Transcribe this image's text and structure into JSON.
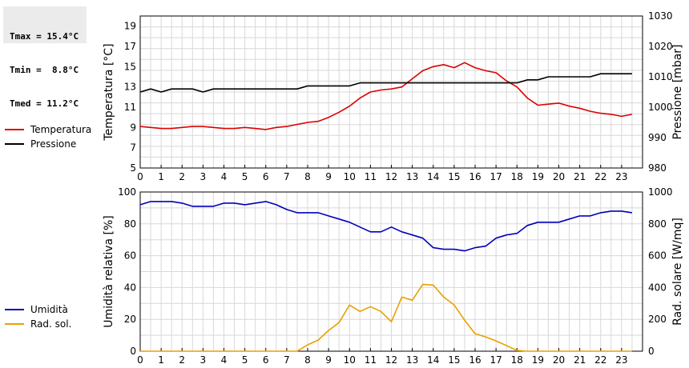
{
  "stats": {
    "tmax": "Tmax = 15.4°C",
    "tmin": "Tmin =  8.8°C",
    "tmed": "Tmed = 11.2°C"
  },
  "chart_data": [
    {
      "type": "line",
      "ylabel": "Temperatura [°C]",
      "y2label": "Pressione [mbar]",
      "ylim": [
        5,
        20
      ],
      "yticks": [
        5,
        7,
        9,
        11,
        13,
        15,
        17,
        19
      ],
      "y2lim": [
        980,
        1030
      ],
      "y2ticks": [
        980,
        990,
        1000,
        1010,
        1020,
        1030
      ],
      "xlim": [
        0,
        24
      ],
      "xticks": [
        0,
        1,
        2,
        3,
        4,
        5,
        6,
        7,
        8,
        9,
        10,
        11,
        12,
        13,
        14,
        15,
        16,
        17,
        18,
        19,
        20,
        21,
        22,
        23
      ],
      "grid": true,
      "legend_placement": "left",
      "series": [
        {
          "name": "Temperatura",
          "axis": "left",
          "color": "#dd0000",
          "x": [
            0,
            0.5,
            1,
            1.5,
            2,
            2.5,
            3,
            3.5,
            4,
            4.5,
            5,
            5.5,
            6,
            6.5,
            7,
            7.5,
            8,
            8.5,
            9,
            9.5,
            10,
            10.5,
            11,
            11.5,
            12,
            12.5,
            13,
            13.5,
            14,
            14.5,
            15,
            15.5,
            16,
            16.5,
            17,
            17.5,
            18,
            18.5,
            19,
            19.5,
            20,
            20.5,
            21,
            21.5,
            22,
            22.5,
            23,
            23.5
          ],
          "y": [
            9.1,
            9.0,
            8.9,
            8.9,
            9.0,
            9.1,
            9.1,
            9.0,
            8.9,
            8.9,
            9.0,
            8.9,
            8.8,
            9.0,
            9.1,
            9.3,
            9.5,
            9.6,
            10.0,
            10.5,
            11.1,
            11.9,
            12.5,
            12.7,
            12.8,
            13.0,
            13.8,
            14.6,
            15.0,
            15.2,
            14.9,
            15.4,
            14.9,
            14.6,
            14.4,
            13.6,
            13.0,
            11.9,
            11.2,
            11.3,
            11.4,
            11.1,
            10.9,
            10.6,
            10.4,
            10.3,
            10.1,
            10.3
          ]
        },
        {
          "name": "Pressione",
          "axis": "right",
          "color": "#000000",
          "x": [
            0,
            0.5,
            1,
            1.5,
            2,
            2.5,
            3,
            3.5,
            4,
            4.5,
            5,
            5.5,
            6,
            6.5,
            7,
            7.5,
            8,
            8.5,
            9,
            9.5,
            10,
            10.5,
            11,
            11.5,
            12,
            12.5,
            13,
            13.5,
            14,
            14.5,
            15,
            15.5,
            16,
            16.5,
            17,
            17.5,
            18,
            18.5,
            19,
            19.5,
            20,
            20.5,
            21,
            21.5,
            22,
            22.5,
            23,
            23.5
          ],
          "y": [
            1005,
            1006,
            1005,
            1006,
            1006,
            1006,
            1005,
            1006,
            1006,
            1006,
            1006,
            1006,
            1006,
            1006,
            1006,
            1006,
            1007,
            1007,
            1007,
            1007,
            1007,
            1008,
            1008,
            1008,
            1008,
            1008,
            1008,
            1008,
            1008,
            1008,
            1008,
            1008,
            1008,
            1008,
            1008,
            1008,
            1008,
            1009,
            1009,
            1010,
            1010,
            1010,
            1010,
            1010,
            1011,
            1011,
            1011,
            1011
          ]
        }
      ]
    },
    {
      "type": "line",
      "ylabel": "Umidità relativa [%]",
      "y2label": "Rad. solare [W/mq]",
      "ylim": [
        0,
        100
      ],
      "yticks": [
        0,
        20,
        40,
        60,
        80,
        100
      ],
      "y2lim": [
        0,
        1000
      ],
      "y2ticks": [
        0,
        200,
        400,
        600,
        800,
        1000
      ],
      "xlim": [
        0,
        24
      ],
      "xticks": [
        0,
        1,
        2,
        3,
        4,
        5,
        6,
        7,
        8,
        9,
        10,
        11,
        12,
        13,
        14,
        15,
        16,
        17,
        18,
        19,
        20,
        21,
        22,
        23
      ],
      "grid": true,
      "legend_placement": "left",
      "series": [
        {
          "name": "Umidità",
          "axis": "left",
          "color": "#0000bb",
          "x": [
            0,
            0.5,
            1,
            1.5,
            2,
            2.5,
            3,
            3.5,
            4,
            4.5,
            5,
            5.5,
            6,
            6.5,
            7,
            7.5,
            8,
            8.5,
            9,
            9.5,
            10,
            10.5,
            11,
            11.5,
            12,
            12.5,
            13,
            13.5,
            14,
            14.5,
            15,
            15.5,
            16,
            16.5,
            17,
            17.5,
            18,
            18.5,
            19,
            19.5,
            20,
            20.5,
            21,
            21.5,
            22,
            22.5,
            23,
            23.5
          ],
          "y": [
            92,
            94,
            94,
            94,
            93,
            91,
            91,
            91,
            93,
            93,
            92,
            93,
            94,
            92,
            89,
            87,
            87,
            87,
            85,
            83,
            81,
            78,
            75,
            75,
            78,
            75,
            73,
            71,
            65,
            64,
            64,
            63,
            65,
            66,
            71,
            73,
            74,
            79,
            81,
            81,
            81,
            83,
            85,
            85,
            87,
            88,
            88,
            87
          ]
        },
        {
          "name": "Rad. sol.",
          "axis": "right",
          "color": "#e8a000",
          "x": [
            0,
            0.5,
            1,
            1.5,
            2,
            2.5,
            3,
            3.5,
            4,
            4.5,
            5,
            5.5,
            6,
            6.5,
            7,
            7.5,
            8,
            8.5,
            9,
            9.5,
            10,
            10.5,
            11,
            11.5,
            12,
            12.5,
            13,
            13.5,
            14,
            14.5,
            15,
            15.5,
            16,
            16.5,
            17,
            17.5,
            18,
            18.5,
            19,
            19.5,
            20,
            20.5,
            21,
            21.5,
            22,
            22.5,
            23,
            23.5
          ],
          "y": [
            0,
            0,
            0,
            0,
            0,
            0,
            0,
            0,
            0,
            0,
            0,
            0,
            0,
            0,
            0,
            0,
            40,
            70,
            130,
            180,
            290,
            250,
            280,
            250,
            185,
            340,
            320,
            420,
            415,
            340,
            290,
            195,
            110,
            90,
            65,
            35,
            5,
            0,
            0,
            0,
            0,
            0,
            0,
            0,
            0,
            0,
            0,
            0
          ]
        }
      ]
    }
  ]
}
